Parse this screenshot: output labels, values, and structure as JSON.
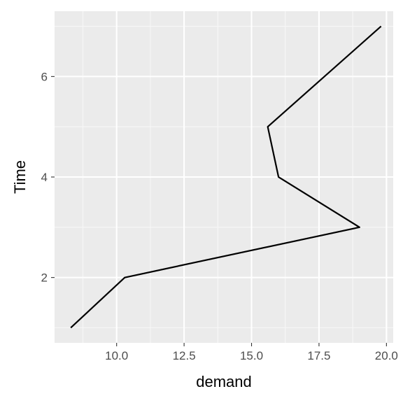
{
  "chart_data": {
    "type": "line",
    "title": "",
    "xlabel": "demand",
    "ylabel": "Time",
    "xlim": [
      7.7,
      20.25
    ],
    "ylim": [
      0.7,
      7.3
    ],
    "x_ticks": [
      10.0,
      12.5,
      15.0,
      17.5,
      20.0
    ],
    "x_tick_labels": [
      "10.0",
      "12.5",
      "15.0",
      "17.5",
      "20.0"
    ],
    "y_ticks": [
      2,
      4,
      6
    ],
    "y_tick_labels": [
      "2",
      "4",
      "6"
    ],
    "grid": true,
    "legend": "none",
    "series": [
      {
        "x": [
          8.3,
          10.3,
          19.0,
          16.0,
          15.6,
          19.8
        ],
        "y": [
          1,
          2,
          3,
          4,
          5,
          7
        ]
      }
    ],
    "colors": {
      "panel_background": "#ebebeb",
      "grid_major": "#ffffff",
      "grid_minor": "#f7f7f7",
      "line": "#000000"
    }
  }
}
